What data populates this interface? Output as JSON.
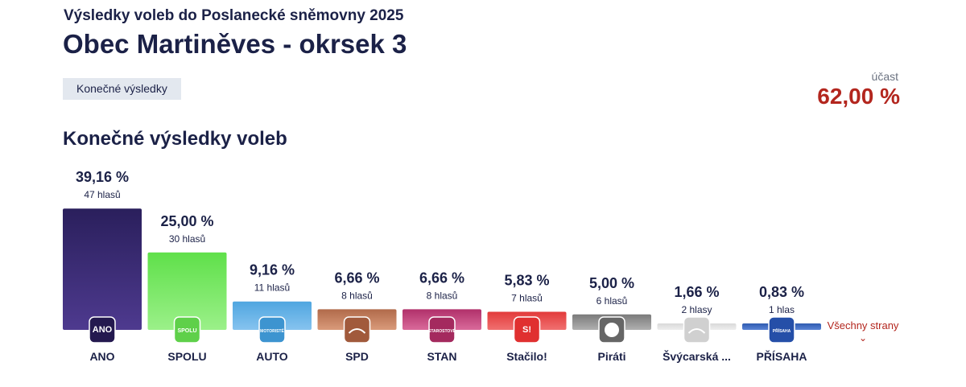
{
  "header": {
    "subtitle": "Výsledky voleb do Poslanecké sněmovny 2025",
    "title": "Obec Martiněves - okrsek 3",
    "chip": "Konečné výsledky"
  },
  "turnout": {
    "label": "účast",
    "value": "62,00 %"
  },
  "section_title": "Konečné výsledky voleb",
  "all_parties_label": "Všechny strany",
  "chart_data": {
    "type": "bar",
    "title": "",
    "categories": [
      "ANO",
      "SPOLU",
      "AUTO",
      "SPD",
      "STAN",
      "Stačilo!",
      "Piráti",
      "Švýcarská ...",
      "PŘÍSAHA"
    ],
    "values": [
      39.16,
      25.0,
      9.16,
      6.66,
      6.66,
      5.83,
      5.0,
      1.66,
      0.83
    ],
    "value_labels": [
      "39,16 %",
      "25,00 %",
      "9,16 %",
      "6,66 %",
      "6,66 %",
      "5,83 %",
      "5,00 %",
      "1,66 %",
      "0,83 %"
    ],
    "votes_labels": [
      "47 hlasů",
      "30 hlasů",
      "11 hlasů",
      "8 hlasů",
      "8 hlasů",
      "7 hlasů",
      "6 hlasů",
      "2 hlasy",
      "1 hlas"
    ],
    "logo_texts": [
      "ANO",
      "SPOLU",
      "MOTORISTÉ",
      "",
      "STAROSTOVÉ",
      "S!",
      "",
      "",
      "PŘÍSAHA"
    ],
    "colors_top": [
      "#2a1f5c",
      "#5fe04a",
      "#4fa6e0",
      "#b06a4a",
      "#b0306a",
      "#e23a3a",
      "#7a7a7a",
      "#d9d9d9",
      "#2f5bb0"
    ],
    "colors_bottom": [
      "#4e3a8f",
      "#9bf089",
      "#86c3ef",
      "#d99a7a",
      "#d96a9a",
      "#f07070",
      "#b0b0b0",
      "#eeeeee",
      "#5a84d6"
    ],
    "badge_colors": [
      "#24194f",
      "#5fd04a",
      "#3d94d0",
      "#a15a3c",
      "#a42a5e",
      "#e03030",
      "#666666",
      "#d0d0d0",
      "#254fa8"
    ],
    "ylim": [
      0,
      40
    ],
    "grid": false,
    "legend": "none"
  }
}
